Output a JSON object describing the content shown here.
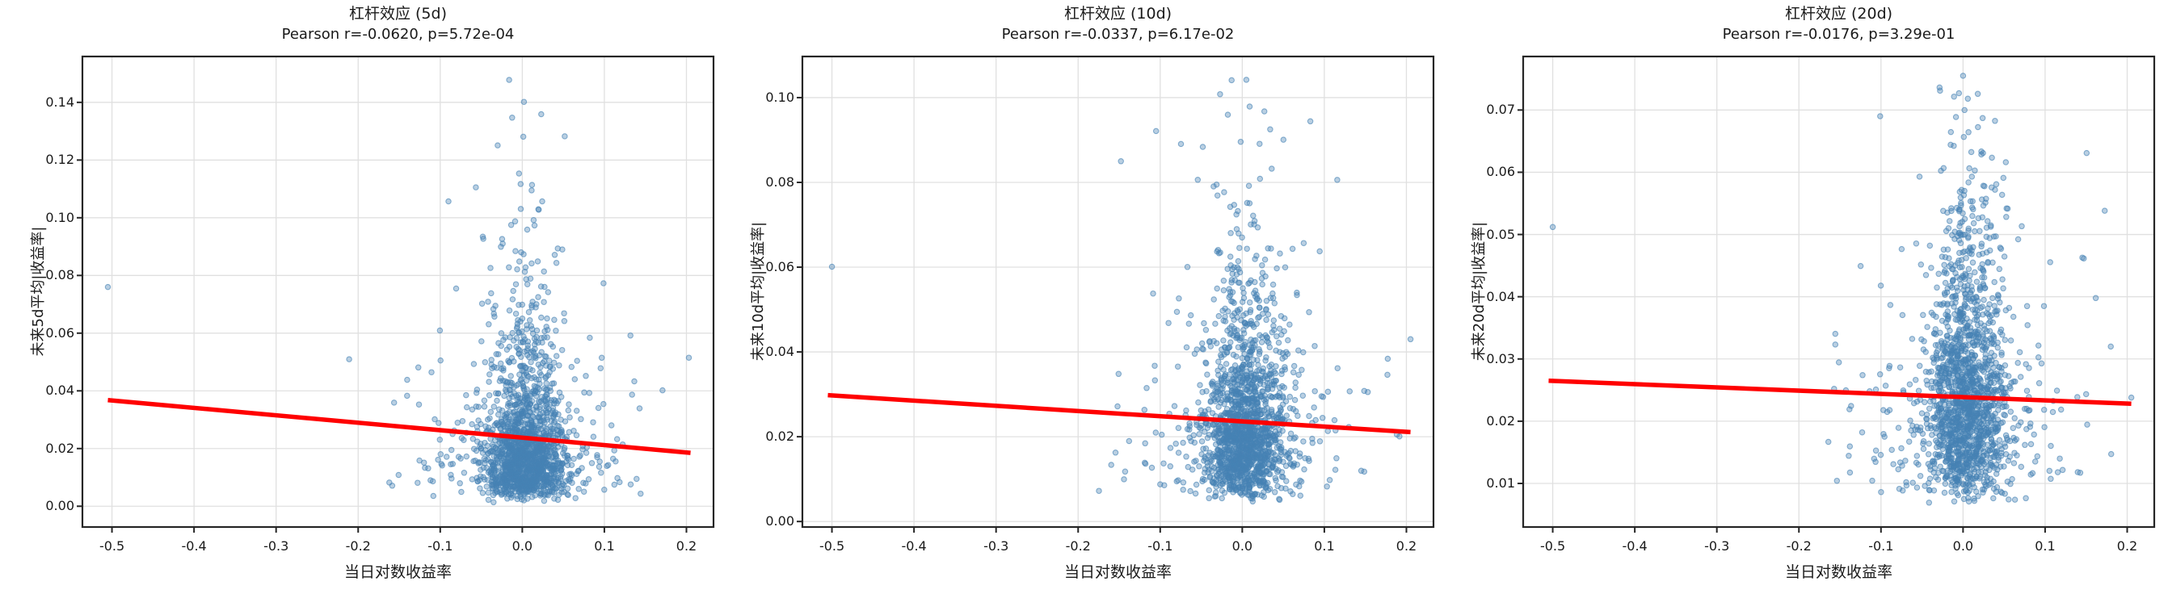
{
  "figure": {
    "background": "#ffffff",
    "text_color": "#1a1a1a",
    "grid_color": "#e0e0e0",
    "spine_color": "#262626",
    "point_color": "#4682b4",
    "point_fill_alpha": 0.38,
    "point_edge_alpha": 0.62,
    "trend_color": "#ff0000"
  },
  "chart_data": [
    {
      "id": "5d",
      "type": "scatter",
      "title": "杠杆效应 (5d)",
      "subtitle": "Pearson r=-0.0620, p=5.72e-04",
      "pearson_r": -0.062,
      "p_value": "5.72e-04",
      "xlabel": "当日对数收益率",
      "ylabel": "未来5d平均|收益率|",
      "xlim": [
        -0.536,
        0.233
      ],
      "ylim": [
        -0.0072,
        0.1559
      ],
      "grid": true,
      "xticks": {
        "values": [
          -0.5,
          -0.4,
          -0.3,
          -0.2,
          -0.1,
          0.0,
          0.1,
          0.2
        ],
        "labels": [
          "-0.5",
          "-0.4",
          "-0.3",
          "-0.2",
          "-0.1",
          "0.0",
          "0.1",
          "0.2"
        ]
      },
      "yticks": {
        "values": [
          0.0,
          0.02,
          0.04,
          0.06,
          0.08,
          0.1,
          0.12,
          0.14
        ],
        "labels": [
          "0.00",
          "0.02",
          "0.04",
          "0.06",
          "0.08",
          "0.10",
          "0.12",
          "0.14"
        ]
      },
      "trend_line": {
        "x": [
          -0.505,
          0.205
        ],
        "y": [
          0.0368,
          0.0185
        ]
      },
      "points": {
        "n": 1700,
        "seed": 11,
        "x": {
          "components": [
            {
              "w": 0.82,
              "mean": 0.004,
              "sd": 0.024
            },
            {
              "w": 0.18,
              "mean": 0.0,
              "sd": 0.066
            }
          ],
          "min": -0.225,
          "max": 0.2
        },
        "y": {
          "log_mu": -3.97,
          "log_sigma": 0.72,
          "min": 0.0008,
          "max": 0.142
        }
      },
      "notable_points": [
        [
          -0.505,
          0.076
        ],
        [
          -0.016,
          0.1478
        ],
        [
          -0.03,
          0.1251
        ],
        [
          0.203,
          0.0515
        ],
        [
          0.099,
          0.0773
        ]
      ]
    },
    {
      "id": "10d",
      "type": "scatter",
      "title": "杠杆效应 (10d)",
      "subtitle": "Pearson r=-0.0337, p=6.17e-02",
      "pearson_r": -0.0337,
      "p_value": "6.17e-02",
      "xlabel": "当日对数收益率",
      "ylabel": "未来10d平均|收益率|",
      "xlim": [
        -0.536,
        0.233
      ],
      "ylim": [
        -0.0013,
        0.1097
      ],
      "grid": true,
      "xticks": {
        "values": [
          -0.5,
          -0.4,
          -0.3,
          -0.2,
          -0.1,
          0.0,
          0.1,
          0.2
        ],
        "labels": [
          "-0.5",
          "-0.4",
          "-0.3",
          "-0.2",
          "-0.1",
          "0.0",
          "0.1",
          "0.2"
        ]
      },
      "yticks": {
        "values": [
          0.0,
          0.02,
          0.04,
          0.06,
          0.08,
          0.1
        ],
        "labels": [
          "0.00",
          "0.02",
          "0.04",
          "0.06",
          "0.08",
          "0.10"
        ]
      },
      "trend_line": {
        "x": [
          -0.505,
          0.205
        ],
        "y": [
          0.0298,
          0.0211
        ]
      },
      "points": {
        "n": 1700,
        "seed": 22,
        "x": {
          "components": [
            {
              "w": 0.82,
              "mean": 0.004,
              "sd": 0.024
            },
            {
              "w": 0.18,
              "mean": 0.0,
              "sd": 0.066
            }
          ],
          "min": -0.225,
          "max": 0.2
        },
        "y": {
          "log_mu": -3.84,
          "log_sigma": 0.58,
          "min": 0.0045,
          "max": 0.097
        }
      },
      "notable_points": [
        [
          -0.5,
          0.0601
        ],
        [
          -0.013,
          0.1041
        ],
        [
          0.005,
          0.1042
        ],
        [
          -0.027,
          0.1008
        ],
        [
          0.009,
          0.0979
        ],
        [
          0.034,
          0.0925
        ],
        [
          -0.105,
          0.0921
        ],
        [
          0.205,
          0.043
        ]
      ]
    },
    {
      "id": "20d",
      "type": "scatter",
      "title": "杠杆效应 (20d)",
      "subtitle": "Pearson r=-0.0176, p=3.29e-01",
      "pearson_r": -0.0176,
      "p_value": "3.29e-01",
      "xlabel": "当日对数收益率",
      "ylabel": "未来20d平均|收益率|",
      "xlim": [
        -0.536,
        0.233
      ],
      "ylim": [
        0.003,
        0.0786
      ],
      "grid": true,
      "xticks": {
        "values": [
          -0.5,
          -0.4,
          -0.3,
          -0.2,
          -0.1,
          0.0,
          0.1,
          0.2
        ],
        "labels": [
          "-0.5",
          "-0.4",
          "-0.3",
          "-0.2",
          "-0.1",
          "0.0",
          "0.1",
          "0.2"
        ]
      },
      "yticks": {
        "values": [
          0.01,
          0.02,
          0.03,
          0.04,
          0.05,
          0.06,
          0.07
        ],
        "labels": [
          "0.01",
          "0.02",
          "0.03",
          "0.04",
          "0.05",
          "0.06",
          "0.07"
        ]
      },
      "trend_line": {
        "x": [
          -0.505,
          0.205
        ],
        "y": [
          0.0265,
          0.0228
        ]
      },
      "points": {
        "n": 1700,
        "seed": 33,
        "x": {
          "components": [
            {
              "w": 0.82,
              "mean": 0.004,
              "sd": 0.024
            },
            {
              "w": 0.18,
              "mean": 0.0,
              "sd": 0.066
            }
          ],
          "min": -0.225,
          "max": 0.2
        },
        "y": {
          "log_mu": -3.77,
          "log_sigma": 0.48,
          "min": 0.0066,
          "max": 0.0742
        }
      },
      "notable_points": [
        [
          -0.5,
          0.0512
        ],
        [
          0.0,
          0.0755
        ],
        [
          -0.028,
          0.0731
        ],
        [
          0.018,
          0.0726
        ],
        [
          -0.101,
          0.069
        ],
        [
          0.205,
          0.0238
        ],
        [
          0.18,
          0.032
        ]
      ]
    }
  ]
}
